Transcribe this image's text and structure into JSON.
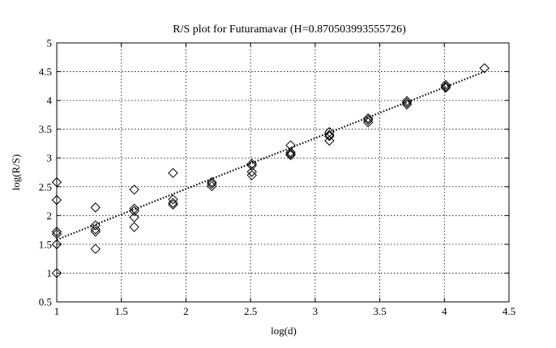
{
  "chart_data": {
    "type": "scatter",
    "title": "R/S plot for Futuramavar (H=0.870503993555726)",
    "xlabel": "log(d)",
    "ylabel": "log(R/S)",
    "xlim": [
      1,
      4.5
    ],
    "ylim": [
      0.5,
      5
    ],
    "xticks": [
      "1",
      "1.5",
      "2",
      "2.5",
      "3",
      "3.5",
      "4",
      "4.5"
    ],
    "yticks": [
      "0.5",
      "1",
      "1.5",
      "2",
      "2.5",
      "3",
      "3.5",
      "4",
      "4.5",
      "5"
    ],
    "grid": true,
    "marker": "diamond",
    "series": [
      {
        "values": [
          [
            1.0,
            2.58
          ],
          [
            1.0,
            2.27
          ],
          [
            1.0,
            1.72
          ],
          [
            1.0,
            1.68
          ],
          [
            1.0,
            1.5
          ],
          [
            1.0,
            1.0
          ],
          [
            1.3,
            2.14
          ],
          [
            1.3,
            1.83
          ],
          [
            1.3,
            1.76
          ],
          [
            1.3,
            1.72
          ],
          [
            1.3,
            1.42
          ],
          [
            1.6,
            2.45
          ],
          [
            1.6,
            2.12
          ],
          [
            1.6,
            2.08
          ],
          [
            1.6,
            1.97
          ],
          [
            1.6,
            1.8
          ],
          [
            1.9,
            2.74
          ],
          [
            1.9,
            2.28
          ],
          [
            1.9,
            2.22
          ],
          [
            1.9,
            2.19
          ],
          [
            2.2,
            2.58
          ],
          [
            2.2,
            2.55
          ],
          [
            2.2,
            2.51
          ],
          [
            2.51,
            2.9
          ],
          [
            2.51,
            2.87
          ],
          [
            2.51,
            2.76
          ],
          [
            2.51,
            2.7
          ],
          [
            2.81,
            3.22
          ],
          [
            2.81,
            3.1
          ],
          [
            2.81,
            3.07
          ],
          [
            2.81,
            3.05
          ],
          [
            3.11,
            3.45
          ],
          [
            3.11,
            3.4
          ],
          [
            3.11,
            3.38
          ],
          [
            3.11,
            3.3
          ],
          [
            3.41,
            3.69
          ],
          [
            3.41,
            3.66
          ],
          [
            3.41,
            3.62
          ],
          [
            3.71,
            3.99
          ],
          [
            3.71,
            3.96
          ],
          [
            3.71,
            3.93
          ],
          [
            4.01,
            4.27
          ],
          [
            4.01,
            4.24
          ],
          [
            4.01,
            4.22
          ],
          [
            4.31,
            4.56
          ]
        ]
      }
    ],
    "fit_line": {
      "style": "dotted",
      "x": [
        1.0,
        4.31
      ],
      "y": [
        1.58,
        4.5
      ]
    }
  }
}
